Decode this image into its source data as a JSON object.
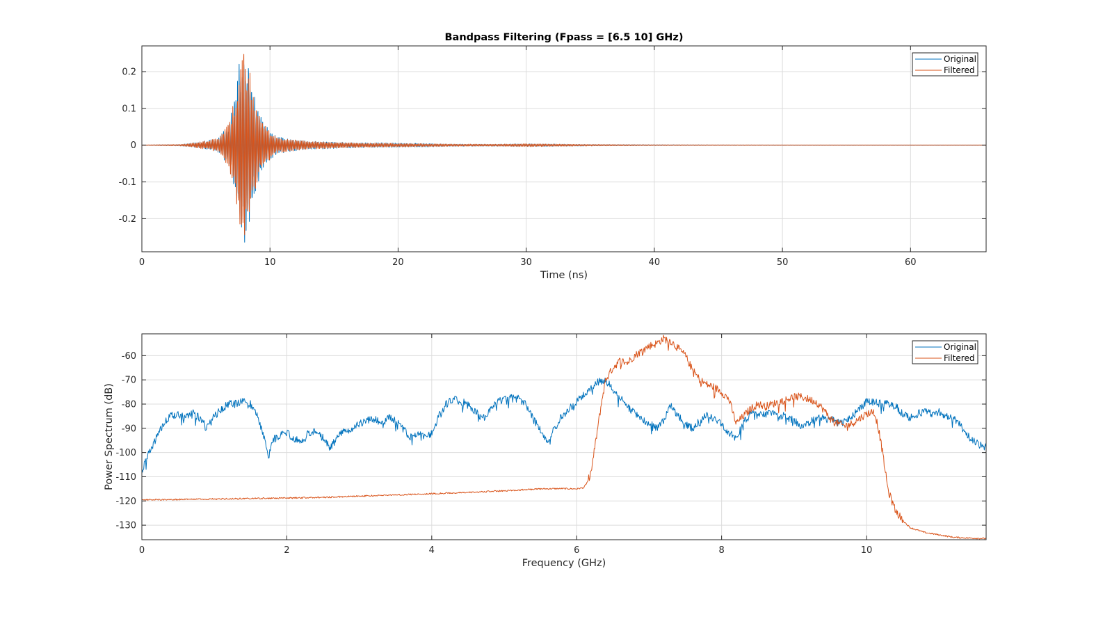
{
  "colors": {
    "original": "#0072BD",
    "filtered": "#D95319",
    "grid": "#dcdcdc",
    "axis": "#262626"
  },
  "chart_data": [
    {
      "type": "line",
      "title": "Bandpass Filtering  (Fpass = [6.5 10] GHz)",
      "xlabel": "Time (ns)",
      "ylabel": "",
      "xlim": [
        0,
        65.9
      ],
      "ylim": [
        -0.29,
        0.27
      ],
      "xticks": [
        0,
        10,
        20,
        30,
        40,
        50,
        60
      ],
      "xtick_labels": [
        "0",
        "10",
        "20",
        "30",
        "40",
        "50",
        "60"
      ],
      "yticks": [
        0.2,
        0.1,
        0,
        -0.1,
        -0.2
      ],
      "ytick_labels": [
        "0.2",
        "0.1",
        "0",
        "-0.1",
        "-0.2"
      ],
      "grid": true,
      "legend": {
        "placement": "top-right",
        "entries": [
          "Original",
          "Filtered"
        ]
      },
      "series": [
        {
          "name": "Original",
          "envelope_t": [
            0,
            3,
            4,
            5,
            6,
            6.8,
            7.3,
            7.7,
            8.0,
            8.3,
            8.7,
            9.2,
            9.8,
            10.5,
            11.5,
            13,
            15,
            17,
            20,
            22,
            25,
            28,
            30,
            33,
            35,
            40,
            45,
            50,
            60,
            65.9
          ],
          "envelope_a": [
            0.0005,
            0.002,
            0.006,
            0.012,
            0.02,
            0.06,
            0.15,
            0.25,
            0.29,
            0.25,
            0.15,
            0.09,
            0.05,
            0.025,
            0.018,
            0.012,
            0.009,
            0.007,
            0.006,
            0.005,
            0.003,
            0.003,
            0.004,
            0.003,
            0.002,
            0.0012,
            0.0008,
            0.0006,
            0.0005,
            0.0004
          ],
          "freq_ghz": 8.2
        },
        {
          "name": "Filtered",
          "envelope_t": [
            0,
            3,
            4,
            5,
            6,
            6.8,
            7.3,
            7.7,
            8.0,
            8.3,
            8.7,
            9.2,
            9.8,
            10.5,
            11.5,
            13,
            15,
            17,
            20,
            22,
            25,
            28,
            30,
            33,
            35,
            40,
            45,
            50,
            60,
            65.9
          ],
          "envelope_a": [
            0.0005,
            0.002,
            0.006,
            0.012,
            0.02,
            0.06,
            0.14,
            0.24,
            0.27,
            0.23,
            0.14,
            0.085,
            0.048,
            0.024,
            0.017,
            0.011,
            0.008,
            0.006,
            0.005,
            0.004,
            0.003,
            0.003,
            0.004,
            0.003,
            0.002,
            0.001,
            0.0007,
            0.0005,
            0.0004,
            0.0004
          ],
          "freq_ghz": 8.2
        }
      ]
    },
    {
      "type": "line",
      "title": "",
      "xlabel": "Frequency (GHz)",
      "ylabel": "Power Spectrum (dB)",
      "xlim": [
        0,
        11.65
      ],
      "ylim": [
        -136,
        -51
      ],
      "xticks": [
        0,
        2,
        4,
        6,
        8,
        10
      ],
      "xtick_labels": [
        "0",
        "2",
        "4",
        "6",
        "8",
        "10"
      ],
      "yticks": [
        -60,
        -70,
        -80,
        -90,
        -100,
        -110,
        -120,
        -130
      ],
      "ytick_labels": [
        "-60",
        "-70",
        "-80",
        "-90",
        "-100",
        "-110",
        "-120",
        "-130"
      ],
      "grid": true,
      "legend": {
        "placement": "top-right",
        "entries": [
          "Original",
          "Filtered"
        ]
      },
      "series": [
        {
          "name": "Original",
          "x": [
            0,
            0.05,
            0.1,
            0.15,
            0.2,
            0.3,
            0.4,
            0.5,
            0.6,
            0.7,
            0.8,
            0.9,
            1.0,
            1.1,
            1.2,
            1.3,
            1.4,
            1.5,
            1.6,
            1.7,
            1.75,
            1.8,
            1.9,
            2.0,
            2.1,
            2.2,
            2.3,
            2.4,
            2.5,
            2.6,
            2.7,
            2.8,
            2.9,
            3.0,
            3.1,
            3.2,
            3.3,
            3.4,
            3.5,
            3.6,
            3.7,
            3.8,
            3.9,
            4.0,
            4.1,
            4.2,
            4.3,
            4.4,
            4.5,
            4.6,
            4.7,
            4.8,
            4.9,
            5.0,
            5.1,
            5.2,
            5.3,
            5.4,
            5.5,
            5.6,
            5.7,
            5.8,
            5.9,
            6.0,
            6.1,
            6.2,
            6.3,
            6.4,
            6.5,
            6.6,
            6.7,
            6.8,
            6.9,
            7.0,
            7.1,
            7.2,
            7.3,
            7.4,
            7.5,
            7.6,
            7.7,
            7.8,
            7.9,
            8.0,
            8.1,
            8.2,
            8.3,
            8.4,
            8.5,
            8.6,
            8.7,
            8.8,
            8.9,
            9.0,
            9.1,
            9.2,
            9.3,
            9.4,
            9.5,
            9.6,
            9.7,
            9.8,
            9.9,
            10.0,
            10.1,
            10.2,
            10.3,
            10.4,
            10.5,
            10.6,
            10.7,
            10.8,
            10.9,
            11.0,
            11.1,
            11.2,
            11.3,
            11.4,
            11.5,
            11.65
          ],
          "y": [
            -108,
            -104,
            -100,
            -97,
            -94,
            -88,
            -85,
            -84,
            -85,
            -83,
            -86,
            -90,
            -85,
            -82,
            -80,
            -80,
            -79,
            -80,
            -85,
            -95,
            -102,
            -95,
            -93,
            -92,
            -94,
            -96,
            -92,
            -91,
            -94,
            -98,
            -94,
            -90,
            -91,
            -88,
            -87,
            -86,
            -88,
            -85,
            -87,
            -90,
            -94,
            -92,
            -93,
            -92,
            -85,
            -80,
            -78,
            -79,
            -80,
            -83,
            -86,
            -83,
            -79,
            -78,
            -77,
            -77,
            -80,
            -86,
            -91,
            -95,
            -89,
            -85,
            -82,
            -79,
            -76,
            -73,
            -71,
            -70,
            -74,
            -77,
            -81,
            -84,
            -86,
            -88,
            -90,
            -87,
            -80,
            -85,
            -88,
            -90,
            -87,
            -84,
            -86,
            -88,
            -92,
            -94,
            -88,
            -84,
            -85,
            -84,
            -84,
            -85,
            -85,
            -87,
            -89,
            -88,
            -86,
            -85,
            -86,
            -88,
            -87,
            -85,
            -82,
            -79,
            -79,
            -80,
            -80,
            -81,
            -84,
            -86,
            -84,
            -83,
            -84,
            -83,
            -85,
            -86,
            -89,
            -93,
            -96,
            -98
          ]
        },
        {
          "name": "Filtered",
          "x": [
            0,
            0.5,
            1,
            1.5,
            2,
            2.5,
            3,
            3.5,
            4,
            4.5,
            5,
            5.5,
            5.8,
            6.0,
            6.1,
            6.15,
            6.2,
            6.25,
            6.3,
            6.35,
            6.4,
            6.5,
            6.6,
            6.7,
            6.8,
            6.9,
            7.0,
            7.1,
            7.2,
            7.3,
            7.4,
            7.5,
            7.6,
            7.7,
            7.8,
            7.9,
            8.0,
            8.1,
            8.2,
            8.3,
            8.4,
            8.5,
            8.6,
            8.7,
            8.8,
            8.9,
            9.0,
            9.1,
            9.2,
            9.3,
            9.4,
            9.5,
            9.6,
            9.7,
            9.8,
            9.9,
            10.0,
            10.1,
            10.15,
            10.2,
            10.25,
            10.3,
            10.4,
            10.5,
            10.6,
            10.8,
            11.0,
            11.2,
            11.4,
            11.65
          ],
          "y": [
            -119.5,
            -119.4,
            -119.2,
            -119,
            -118.8,
            -118.5,
            -118,
            -117.5,
            -117,
            -116.5,
            -115.8,
            -115,
            -114.9,
            -115,
            -114.5,
            -112,
            -108,
            -98,
            -88,
            -78,
            -70,
            -65,
            -62,
            -63,
            -60,
            -58,
            -56,
            -55,
            -53,
            -54,
            -57,
            -60,
            -66,
            -70,
            -72,
            -73,
            -75,
            -78,
            -88,
            -85,
            -82,
            -80,
            -81,
            -80,
            -79,
            -78,
            -77,
            -77,
            -78,
            -79,
            -82,
            -86,
            -88,
            -89,
            -88,
            -86,
            -84,
            -83,
            -88,
            -96,
            -106,
            -116,
            -124,
            -128,
            -131,
            -133,
            -134,
            -135,
            -135.3,
            -135.5
          ]
        }
      ]
    }
  ]
}
